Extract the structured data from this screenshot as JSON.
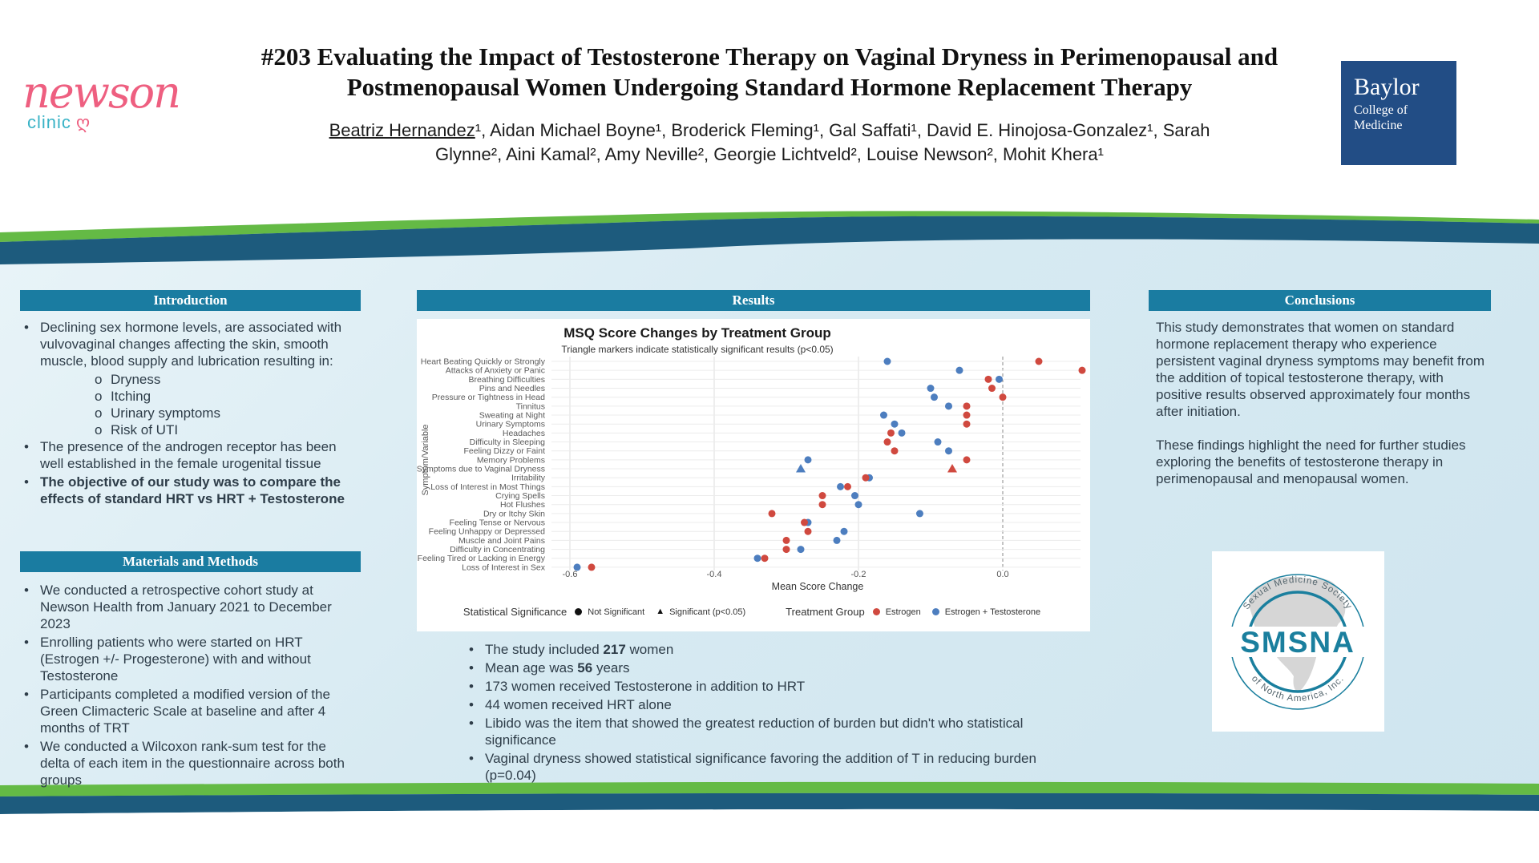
{
  "header": {
    "title_line1": "#203 Evaluating the Impact of Testosterone Therapy on Vaginal Dryness in Perimenopausal and",
    "title_line2": "Postmenopausal Women Undergoing Standard Hormone Replacement Therapy",
    "authors": {
      "first": "Beatriz Hernandez",
      "rest": "¹, Aidan Michael Boyne¹, Broderick Fleming¹, Gal Saffati¹, David E. Hinojosa-Gonzalez¹, Sarah Glynne², Aini Kamal², Amy Neville², Georgie Lichtveld², Louise Newson², Mohit Khera¹"
    }
  },
  "logos": {
    "newson": {
      "name": "newson",
      "sub": "clinic"
    },
    "baylor": {
      "line1": "Baylor",
      "line2": "College of",
      "line3": "Medicine"
    },
    "smsna": {
      "acronym": "SMSNA",
      "arc_top": "Sexual Medicine Society",
      "arc_bottom": "of North America, Inc."
    }
  },
  "introduction": {
    "header": "Introduction",
    "bullets": [
      {
        "text": "Declining sex hormone levels, are associated with vulvovaginal changes affecting the skin, smooth muscle, blood supply and lubrication resulting in:",
        "bold": false,
        "subs": [
          "Dryness",
          "Itching",
          "Urinary symptoms",
          "Risk of UTI"
        ]
      },
      {
        "text": "The presence of the androgen receptor has been well established in the female urogenital tissue",
        "bold": false,
        "subs": []
      },
      {
        "text": "The objective of our study was to compare the effects of standard HRT vs HRT + Testosterone",
        "bold": true,
        "subs": []
      }
    ]
  },
  "methods": {
    "header": "Materials and Methods",
    "bullets": [
      "We conducted a retrospective cohort study at Newson Health from January 2021 to December 2023",
      "Enrolling patients who were started on HRT (Estrogen +/- Progesterone) with and without Testosterone",
      "Participants completed a modified version of the Green Climacteric Scale at baseline and after 4 months of TRT",
      "We conducted a Wilcoxon rank-sum test for the delta of each item in the questionnaire across both groups"
    ]
  },
  "results": {
    "header": "Results",
    "bullets": [
      [
        {
          "t": "The study included ",
          "b": false
        },
        {
          "t": "217",
          "b": true
        },
        {
          "t": " women",
          "b": false
        }
      ],
      [
        {
          "t": "Mean age was ",
          "b": false
        },
        {
          "t": "56",
          "b": true
        },
        {
          "t": " years",
          "b": false
        }
      ],
      [
        {
          "t": "173 women received Testosterone in addition to HRT",
          "b": false
        }
      ],
      [
        {
          "t": "44 women received HRT alone",
          "b": false
        }
      ],
      [
        {
          "t": "Libido was the item that showed the greatest reduction of burden but didn't who statistical significance",
          "b": false
        }
      ],
      [
        {
          "t": "Vaginal dryness showed statistical significance favoring the addition of T in reducing burden (p=0.04)",
          "b": false
        }
      ]
    ]
  },
  "conclusions": {
    "header": "Conclusions",
    "paragraphs": [
      "This study demonstrates that women on standard hormone replacement therapy who experience persistent vaginal dryness symptoms may benefit from the addition of topical testosterone therapy, with positive results observed approximately four months after initiation.",
      "These findings highlight the need for further studies exploring the benefits of testosterone therapy in perimenopausal and menopausal women."
    ]
  },
  "chart_data": {
    "type": "scatter",
    "title": "MSQ Score Changes by Treatment Group",
    "subtitle": "Triangle markers indicate statistically significant results (p<0.05)",
    "xlabel": "Mean Score Change",
    "ylabel": "Symptom/Variable",
    "xlim": [
      -0.65,
      0.12
    ],
    "xticks": [
      -0.6,
      -0.4,
      -0.2,
      0.0
    ],
    "zero_line": "dashed",
    "grid": true,
    "legend_position": "bottom",
    "series": [
      {
        "name": "Estrogen",
        "color": "#d0493f"
      },
      {
        "name": "Estrogen + Testosterone",
        "color": "#4d7ebf"
      }
    ],
    "legend": {
      "significance_label": "Statistical Significance",
      "not_significant": "Not Significant",
      "significant": "Significant (p<0.05)",
      "group_label": "Treatment Group"
    },
    "rows": [
      {
        "label": "Heart Beating Quickly or Strongly",
        "estrogen": 0.05,
        "estrogen_testosterone": -0.16,
        "significant": false
      },
      {
        "label": "Attacks of Anxiety or Panic",
        "estrogen": 0.11,
        "estrogen_testosterone": -0.06,
        "significant": false
      },
      {
        "label": "Breathing Difficulties",
        "estrogen": -0.02,
        "estrogen_testosterone": -0.005,
        "significant": false
      },
      {
        "label": "Pins and Needles",
        "estrogen": -0.015,
        "estrogen_testosterone": -0.1,
        "significant": false
      },
      {
        "label": "Pressure or Tightness in Head",
        "estrogen": 0.0,
        "estrogen_testosterone": -0.095,
        "significant": false
      },
      {
        "label": "Tinnitus",
        "estrogen": -0.05,
        "estrogen_testosterone": -0.075,
        "significant": false
      },
      {
        "label": "Sweating at Night",
        "estrogen": -0.05,
        "estrogen_testosterone": -0.165,
        "significant": false
      },
      {
        "label": "Urinary Symptoms",
        "estrogen": -0.05,
        "estrogen_testosterone": -0.15,
        "significant": false
      },
      {
        "label": "Headaches",
        "estrogen": -0.155,
        "estrogen_testosterone": -0.14,
        "significant": false
      },
      {
        "label": "Difficulty in Sleeping",
        "estrogen": -0.16,
        "estrogen_testosterone": -0.09,
        "significant": false
      },
      {
        "label": "Feeling Dizzy or Faint",
        "estrogen": -0.15,
        "estrogen_testosterone": -0.075,
        "significant": false
      },
      {
        "label": "Memory Problems",
        "estrogen": -0.05,
        "estrogen_testosterone": -0.27,
        "significant": false
      },
      {
        "label": "Symptoms due to Vaginal Dryness",
        "estrogen": -0.07,
        "estrogen_testosterone": -0.28,
        "significant": true
      },
      {
        "label": "Irritability",
        "estrogen": -0.19,
        "estrogen_testosterone": -0.185,
        "significant": false
      },
      {
        "label": "Loss of Interest in Most Things",
        "estrogen": -0.215,
        "estrogen_testosterone": -0.225,
        "significant": false
      },
      {
        "label": "Crying Spells",
        "estrogen": -0.25,
        "estrogen_testosterone": -0.205,
        "significant": false
      },
      {
        "label": "Hot Flushes",
        "estrogen": -0.25,
        "estrogen_testosterone": -0.2,
        "significant": false
      },
      {
        "label": "Dry or Itchy Skin",
        "estrogen": -0.32,
        "estrogen_testosterone": -0.115,
        "significant": false
      },
      {
        "label": "Feeling Tense or Nervous",
        "estrogen": -0.275,
        "estrogen_testosterone": -0.27,
        "significant": false
      },
      {
        "label": "Feeling Unhappy or Depressed",
        "estrogen": -0.27,
        "estrogen_testosterone": -0.22,
        "significant": false
      },
      {
        "label": "Muscle and Joint Pains",
        "estrogen": -0.3,
        "estrogen_testosterone": -0.23,
        "significant": false
      },
      {
        "label": "Difficulty in Concentrating",
        "estrogen": -0.3,
        "estrogen_testosterone": -0.28,
        "significant": false
      },
      {
        "label": "Feeling Tired or Lacking in Energy",
        "estrogen": -0.33,
        "estrogen_testosterone": -0.34,
        "significant": false
      },
      {
        "label": "Loss of Interest in Sex",
        "estrogen": -0.57,
        "estrogen_testosterone": -0.59,
        "significant": false
      }
    ]
  },
  "colors": {
    "header_bar": "#1a7ca1",
    "navy_wave": "#1d5b7d",
    "green_wave": "#64ba45",
    "body_blue": "#d7eaf2",
    "newson_pink": "#ee5f80",
    "clinic_teal": "#39b3c6",
    "baylor_navy": "#224d85",
    "smsna_teal": "#1a7f9e",
    "estrogen_red": "#d0493f",
    "estrogen_testosterone_blue": "#4d7ebf"
  }
}
